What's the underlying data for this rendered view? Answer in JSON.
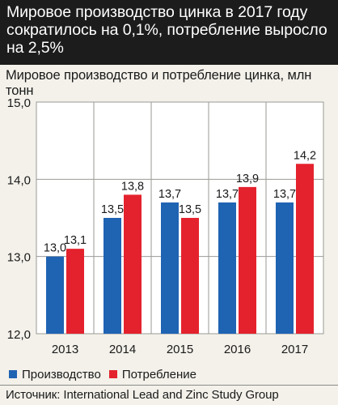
{
  "header": {
    "title": "Мировое производство цинка в 2017 году сократилось на  0,1%, потребление выросло на 2,5%"
  },
  "chart_data": {
    "type": "bar",
    "title": "Мировое производство и потребление цинка, млн тонн",
    "categories": [
      "2013",
      "2014",
      "2015",
      "2016",
      "2017"
    ],
    "series": [
      {
        "name": "Производство",
        "color": "#1f63b3",
        "values": [
          13.0,
          13.5,
          13.7,
          13.7,
          13.7
        ],
        "labels": [
          "13,0",
          "13,5",
          "13,7",
          "13,7",
          "13,7"
        ]
      },
      {
        "name": "Потребление",
        "color": "#e4222d",
        "values": [
          13.1,
          13.8,
          13.5,
          13.9,
          14.2
        ],
        "labels": [
          "13,1",
          "13,8",
          "13,5",
          "13,9",
          "14,2"
        ]
      }
    ],
    "ylim": [
      12.0,
      15.0
    ],
    "yticks": [
      12.0,
      13.0,
      14.0,
      15.0
    ],
    "ytick_labels": [
      "12,0",
      "13,0",
      "14,0",
      "15,0"
    ],
    "grid": true,
    "legend": "bottom-left"
  },
  "footer": {
    "source": "Источник: International Lead and Zinc Study Group"
  }
}
